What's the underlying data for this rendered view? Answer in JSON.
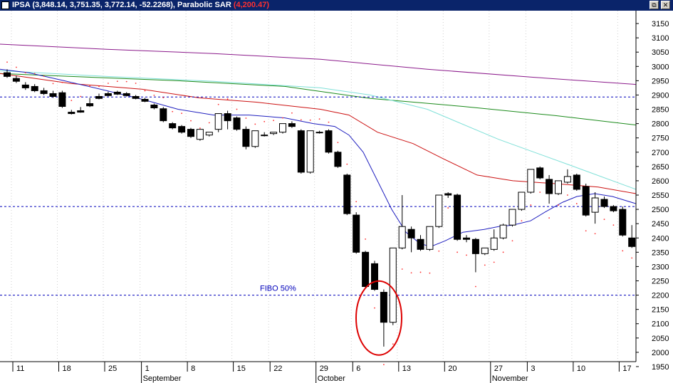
{
  "window": {
    "title_prefix": "IPSA (3,848.14, 3,751.35, 3,772.14, -52.2268), Parabolic SAR ",
    "title_sar": "(4,200.47)",
    "restore_glyph": "⧉",
    "close_glyph": "✕"
  },
  "colors": {
    "titlebar": "#0a246a",
    "sar_value": "#ff3030",
    "ma_purple": "#8b1a8b",
    "ma_green": "#1a8a1a",
    "ma_cyan": "#7fe0d8",
    "ma_red": "#cc1111",
    "ma_blue": "#1f1fbf",
    "hline": "#0000bb",
    "annotation_circle": "#dd0000"
  },
  "chart_data": {
    "type": "candlestick",
    "y_axis": {
      "range": [
        1925,
        3195
      ],
      "ticks": [
        "3150",
        "3100",
        "3050",
        "3000",
        "2950",
        "2900",
        "2850",
        "2800",
        "2750",
        "2700",
        "2650",
        "2600",
        "2550",
        "2500",
        "2450",
        "2400",
        "2350",
        "2300",
        "2250",
        "2200",
        "2150",
        "2100",
        "2050",
        "2000",
        "1950"
      ]
    },
    "x_axis": {
      "day_labels": [
        "11",
        "18",
        "25",
        "1",
        "8",
        "15",
        "22",
        "29",
        "6",
        "13",
        "20",
        "27",
        "3",
        "10",
        "17"
      ],
      "month_labels": [
        "September",
        "October",
        "November"
      ]
    },
    "horizontal_lines": [
      2893,
      2510,
      2200
    ],
    "annotation": {
      "text": "FIBO 50%",
      "level": 2200
    },
    "candles": [
      [
        2978,
        2990,
        2965,
        2960
      ],
      [
        2958,
        2968,
        2948,
        2942
      ],
      [
        2935,
        2945,
        2925,
        2918
      ],
      [
        2930,
        2938,
        2915,
        2910
      ],
      [
        2915,
        2925,
        2905,
        2900
      ],
      [
        2905,
        2915,
        2895,
        2890
      ],
      [
        2908,
        2915,
        2860,
        2855
      ],
      [
        2840,
        2848,
        2835,
        2832
      ],
      [
        2845,
        2858,
        2840,
        2838
      ],
      [
        2870,
        2890,
        2862,
        2858
      ],
      [
        2895,
        2905,
        2888,
        2885
      ],
      [
        2905,
        2912,
        2898,
        2895
      ],
      [
        2910,
        2915,
        2903,
        2900
      ],
      [
        2905,
        2910,
        2898,
        2895
      ],
      [
        2895,
        2900,
        2888,
        2885
      ],
      [
        2885,
        2890,
        2878,
        2875
      ],
      [
        2865,
        2870,
        2855,
        2850
      ],
      [
        2852,
        2858,
        2810,
        2805
      ],
      [
        2800,
        2805,
        2785,
        2780
      ],
      [
        2790,
        2795,
        2770,
        2765
      ],
      [
        2780,
        2785,
        2755,
        2750
      ],
      [
        2745,
        2755,
        2780,
        2740
      ],
      [
        2760,
        2770,
        2770,
        2755
      ],
      [
        2780,
        2830,
        2835,
        2770
      ],
      [
        2835,
        2845,
        2810,
        2780
      ],
      [
        2820,
        2825,
        2780,
        2775
      ],
      [
        2780,
        2790,
        2720,
        2710
      ],
      [
        2720,
        2765,
        2775,
        2715
      ],
      [
        2760,
        2770,
        2760,
        2755
      ],
      [
        2765,
        2770,
        2770,
        2760
      ],
      [
        2770,
        2795,
        2800,
        2765
      ],
      [
        2800,
        2808,
        2790,
        2785
      ],
      [
        2775,
        2780,
        2630,
        2625
      ],
      [
        2630,
        2775,
        2775,
        2625
      ],
      [
        2770,
        2775,
        2770,
        2765
      ],
      [
        2775,
        2780,
        2700,
        2695
      ],
      [
        2700,
        2705,
        2650,
        2645
      ],
      [
        2620,
        2625,
        2485,
        2480
      ],
      [
        2480,
        2490,
        2350,
        2345
      ],
      [
        2350,
        2355,
        2230,
        2225
      ],
      [
        2310,
        2320,
        2220,
        2215
      ],
      [
        2210,
        2220,
        2105,
        2020
      ],
      [
        2105,
        2365,
        2365,
        2095
      ],
      [
        2365,
        2550,
        2440,
        2360
      ],
      [
        2430,
        2440,
        2400,
        2350
      ],
      [
        2395,
        2410,
        2360,
        2355
      ],
      [
        2360,
        2440,
        2440,
        2355
      ],
      [
        2440,
        2550,
        2550,
        2435
      ],
      [
        2555,
        2560,
        2550,
        2540
      ],
      [
        2550,
        2555,
        2395,
        2390
      ],
      [
        2400,
        2410,
        2395,
        2385
      ],
      [
        2395,
        2400,
        2345,
        2280
      ],
      [
        2345,
        2360,
        2365,
        2340
      ],
      [
        2360,
        2430,
        2400,
        2355
      ],
      [
        2400,
        2450,
        2445,
        2395
      ],
      [
        2445,
        2500,
        2500,
        2440
      ],
      [
        2500,
        2560,
        2560,
        2495
      ],
      [
        2560,
        2625,
        2640,
        2555
      ],
      [
        2645,
        2650,
        2610,
        2605
      ],
      [
        2605,
        2620,
        2555,
        2520
      ],
      [
        2555,
        2600,
        2600,
        2550
      ],
      [
        2595,
        2640,
        2615,
        2590
      ],
      [
        2620,
        2625,
        2570,
        2565
      ],
      [
        2580,
        2590,
        2480,
        2475
      ],
      [
        2490,
        2560,
        2540,
        2450
      ],
      [
        2535,
        2545,
        2510,
        2505
      ],
      [
        2510,
        2515,
        2495,
        2490
      ],
      [
        2500,
        2510,
        2410,
        2405
      ],
      [
        2400,
        2445,
        2370,
        2365
      ]
    ]
  }
}
